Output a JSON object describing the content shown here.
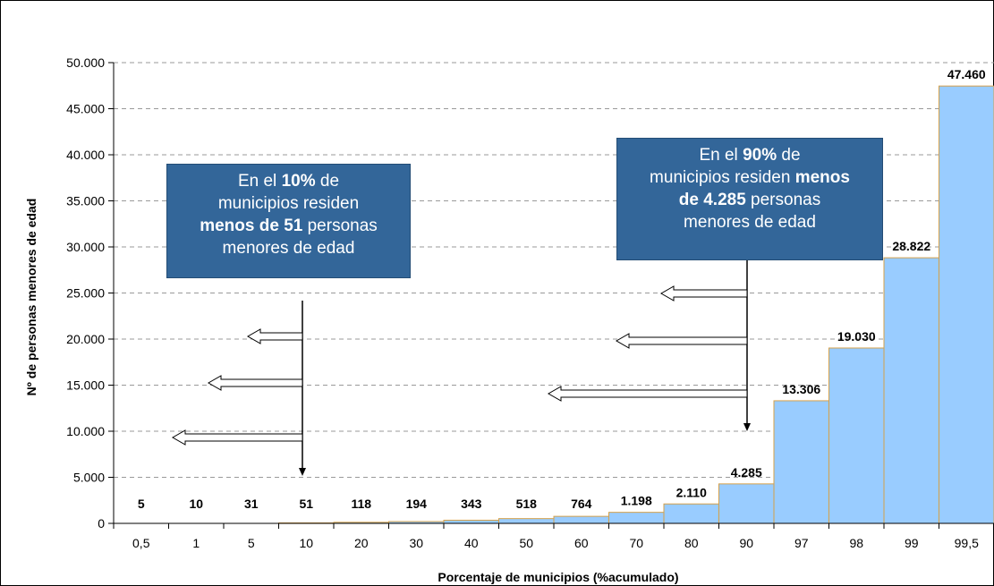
{
  "chart_data": {
    "type": "bar",
    "xlabel": "Porcentaje de municipios (%acumulado)",
    "ylabel": "Nº de personas menores de edad",
    "ylim": [
      0,
      50000
    ],
    "yticks": [
      0,
      5000,
      10000,
      15000,
      20000,
      25000,
      30000,
      35000,
      40000,
      45000,
      50000
    ],
    "ytick_labels": [
      "0",
      "5.000",
      "10.000",
      "15.000",
      "20.000",
      "25.000",
      "30.000",
      "35.000",
      "40.000",
      "45.000",
      "50.000"
    ],
    "grid": "horizontal dashed",
    "categories": [
      "0,5",
      "1",
      "5",
      "10",
      "20",
      "30",
      "40",
      "50",
      "60",
      "70",
      "80",
      "90",
      "97",
      "98",
      "99",
      "99,5"
    ],
    "values": [
      5,
      10,
      31,
      51,
      118,
      194,
      343,
      518,
      764,
      1198,
      2110,
      4285,
      13306,
      19030,
      28822,
      47460
    ],
    "data_labels": [
      "5",
      "10",
      "31",
      "51",
      "118",
      "194",
      "343",
      "518",
      "764",
      "1.198",
      "2.110",
      "4.285",
      "13.306",
      "19.030",
      "28.822",
      "47.460"
    ],
    "bar_fill": "#99ccff",
    "bar_edge": "#d4a04a"
  },
  "annotations": {
    "left": {
      "pre": "En el ",
      "bold1": "10%",
      "mid1": " de",
      "mid2": "municipios residen",
      "bold2": "menos de 51",
      "mid3": " personas",
      "post": "menores de edad"
    },
    "right": {
      "pre": "En el  ",
      "bold1": "90%",
      "mid1": " de",
      "mid2": "municipios residen ",
      "bold2": "menos",
      "bold3": "de 4.285",
      "mid3": " personas",
      "post": "menores de edad"
    }
  },
  "colors": {
    "callout_bg": "#336699",
    "grid": "#999999"
  }
}
